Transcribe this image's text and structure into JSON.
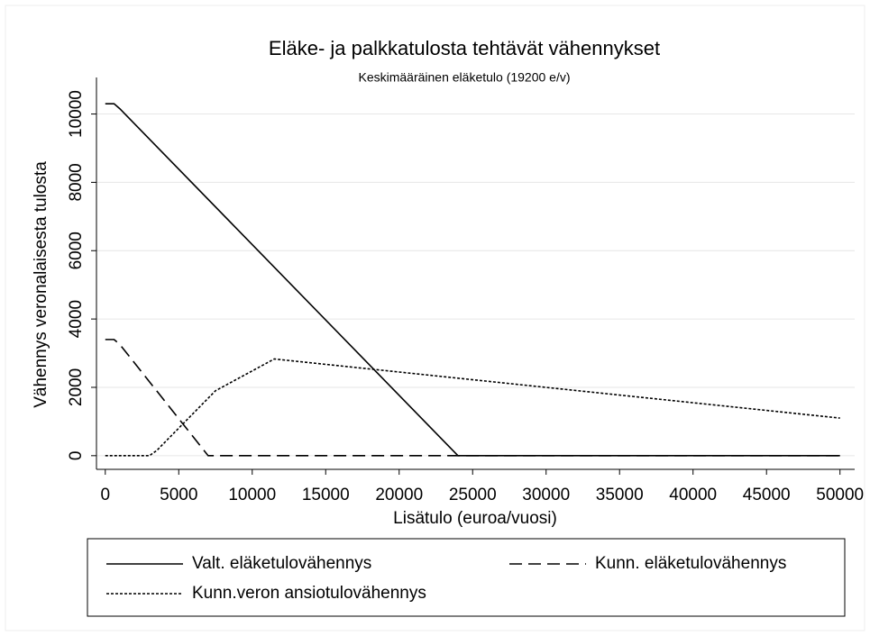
{
  "chart_data": {
    "type": "line",
    "title": "Eläke- ja palkkatulosta tehtävät vähennykset",
    "subtitle": "Keskimääräinen eläketulo (19200 e/v)",
    "x_label": "Lisätulo (euroa/vuosi)",
    "y_label": "Vähennys veronalaisesta tulosta",
    "xlim": [
      -600,
      51000
    ],
    "ylim": [
      -400,
      10700
    ],
    "xticks": [
      0,
      5000,
      10000,
      15000,
      20000,
      25000,
      30000,
      35000,
      40000,
      45000,
      50000
    ],
    "yticks": [
      0,
      2000,
      4000,
      6000,
      8000,
      10000
    ],
    "grid": true,
    "legend": "bottom",
    "series": [
      {
        "name": "Valt. eläketulovähennys",
        "color": "#000000",
        "dash": "solid",
        "x": [
          0,
          600,
          1000,
          24000,
          50000
        ],
        "values": [
          10300,
          10300,
          10150,
          0,
          0
        ]
      },
      {
        "name": "Kunn. eläketulovähennys",
        "color": "#000000",
        "dash": "longdash",
        "x": [
          0,
          600,
          1000,
          7000,
          50000
        ],
        "values": [
          3400,
          3400,
          3250,
          0,
          0
        ]
      },
      {
        "name": "Kunn.veron ansiotulovähennys",
        "color": "#000000",
        "dash": "shortdash",
        "x": [
          0,
          3000,
          3500,
          7500,
          11500,
          50000
        ],
        "values": [
          0,
          0,
          150,
          1900,
          2830,
          1100
        ]
      }
    ]
  }
}
